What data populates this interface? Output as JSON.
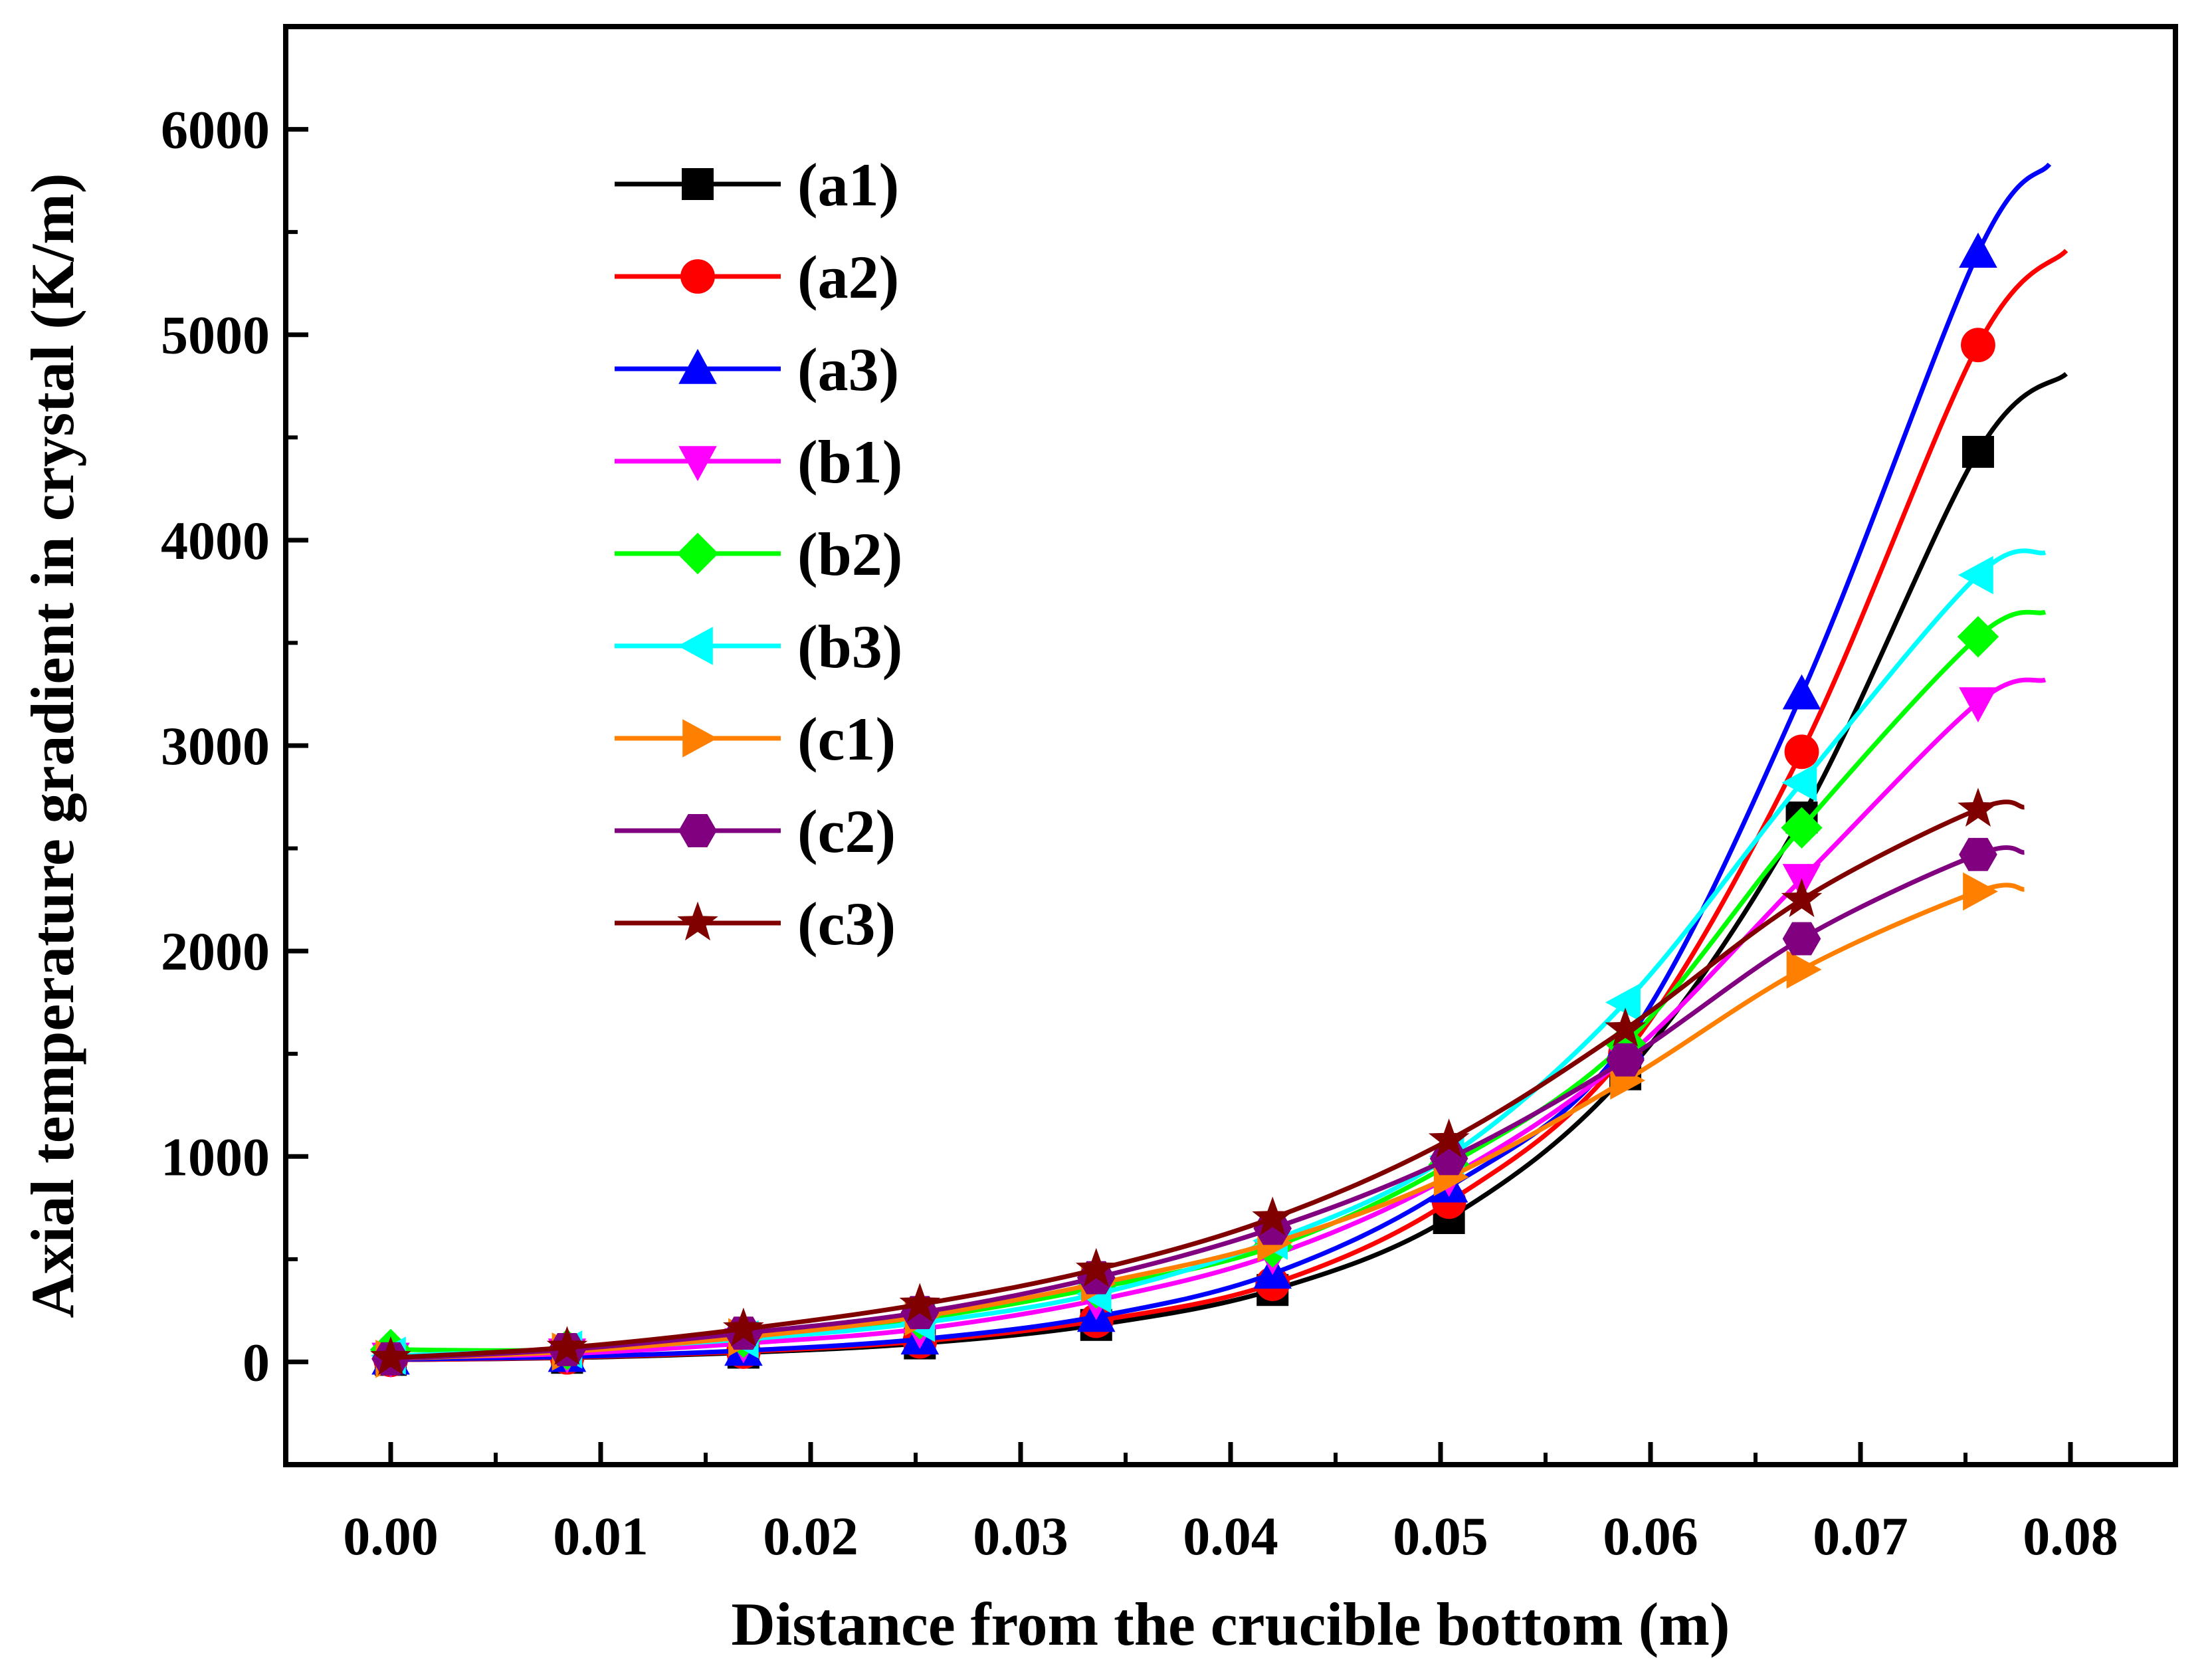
{
  "chart_data": {
    "type": "line",
    "title": "",
    "xlabel": "Distance from the crucible bottom (m)",
    "ylabel": "Axial temperature gradient in crystal (K/m)",
    "xlim": [
      -0.005,
      0.085
    ],
    "ylim": [
      -500,
      6500
    ],
    "x_ticks": [
      "0.00",
      "0.01",
      "0.02",
      "0.03",
      "0.04",
      "0.05",
      "0.06",
      "0.07",
      "0.08"
    ],
    "y_ticks": [
      "0",
      "1000",
      "2000",
      "3000",
      "4000",
      "5000",
      "6000"
    ],
    "x_tick_values": [
      0,
      0.01,
      0.02,
      0.03,
      0.04,
      0.05,
      0.06,
      0.07,
      0.08
    ],
    "y_tick_values": [
      0,
      1000,
      2000,
      3000,
      4000,
      5000,
      6000
    ],
    "legend_position": "top-left",
    "x_markers": [
      0,
      0.0084,
      0.0168,
      0.0252,
      0.0336,
      0.042,
      0.0504,
      0.0588,
      0.0672,
      0.0756
    ],
    "series": [
      {
        "name": "(a1)",
        "color": "#000000",
        "marker": "square",
        "values": [
          10,
          20,
          45,
          90,
          180,
          350,
          700,
          1400,
          2650,
          4430
        ],
        "end": [
          0.0798,
          4810
        ]
      },
      {
        "name": "(a2)",
        "color": "#ff0000",
        "marker": "circle",
        "values": [
          10,
          22,
          50,
          100,
          200,
          380,
          780,
          1500,
          2970,
          4950
        ],
        "end": [
          0.0798,
          5410
        ]
      },
      {
        "name": "(a3)",
        "color": "#0000ff",
        "marker": "triangle-up",
        "values": [
          12,
          25,
          55,
          110,
          220,
          430,
          850,
          1550,
          3250,
          5400
        ],
        "end": [
          0.079,
          5830
        ]
      },
      {
        "name": "(b1)",
        "color": "#ff00ff",
        "marker": "triangle-down",
        "values": [
          20,
          40,
          90,
          160,
          300,
          520,
          900,
          1480,
          2350,
          3210
        ],
        "end": [
          0.0788,
          3320
        ]
      },
      {
        "name": "(b2)",
        "color": "#00ff00",
        "marker": "diamond",
        "values": [
          60,
          60,
          120,
          210,
          360,
          560,
          960,
          1550,
          2600,
          3530
        ],
        "end": [
          0.0788,
          3650
        ]
      },
      {
        "name": "(b3)",
        "color": "#00ffff",
        "marker": "triangle-left",
        "values": [
          30,
          60,
          110,
          190,
          330,
          590,
          1000,
          1750,
          2820,
          3830
        ],
        "end": [
          0.0788,
          3940
        ]
      },
      {
        "name": "(c1)",
        "color": "#ff8000",
        "marker": "triangle-right",
        "values": [
          15,
          50,
          120,
          220,
          380,
          580,
          900,
          1370,
          1910,
          2290
        ],
        "end": [
          0.0778,
          2300
        ]
      },
      {
        "name": "(c2)",
        "color": "#800080",
        "marker": "hexagon",
        "values": [
          15,
          60,
          140,
          240,
          410,
          650,
          990,
          1470,
          2060,
          2470
        ],
        "end": [
          0.0778,
          2480
        ]
      },
      {
        "name": "(c3)",
        "color": "#800000",
        "marker": "star",
        "values": [
          20,
          70,
          160,
          280,
          450,
          700,
          1080,
          1620,
          2250,
          2690
        ],
        "end": [
          0.0778,
          2700
        ]
      }
    ]
  }
}
